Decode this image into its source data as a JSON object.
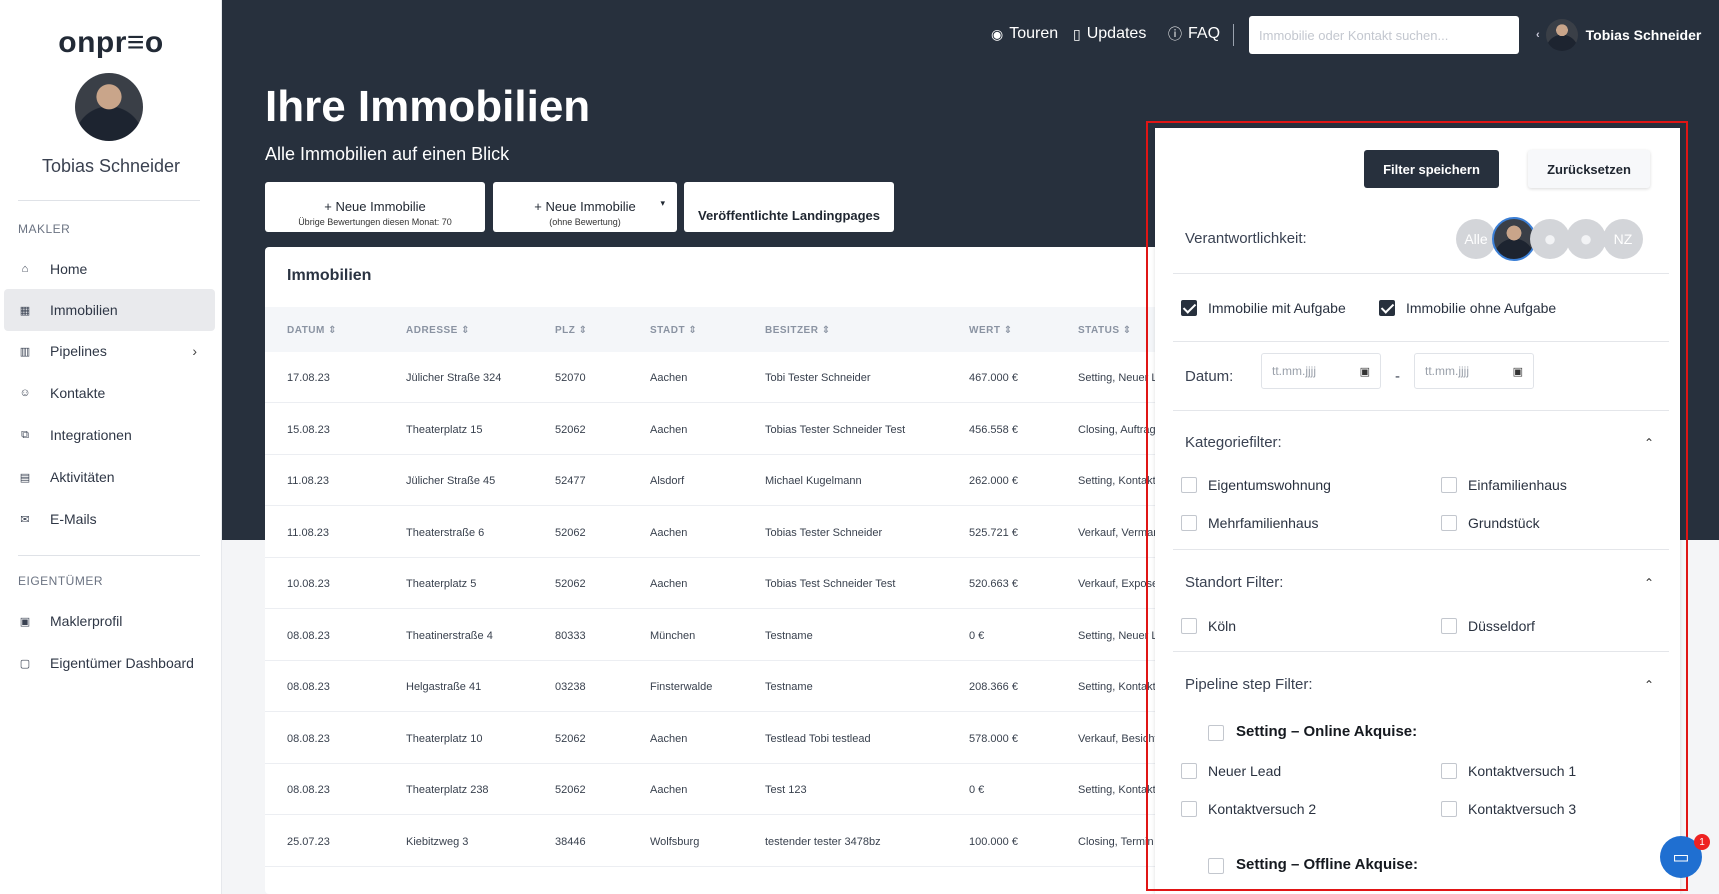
{
  "sidebar": {
    "logo": "onpr≡o",
    "user_name": "Tobias Schneider",
    "section_makler": "MAKLER",
    "section_eigentuemer": "EIGENTÜMER",
    "items": [
      {
        "label": "Home",
        "icon": "home-icon"
      },
      {
        "label": "Immobilien",
        "icon": "building-icon"
      },
      {
        "label": "Pipelines",
        "icon": "pipeline-icon"
      },
      {
        "label": "Kontakte",
        "icon": "contacts-icon"
      },
      {
        "label": "Integrationen",
        "icon": "integrations-icon"
      },
      {
        "label": "Aktivitäten",
        "icon": "calendar-icon"
      },
      {
        "label": "E-Mails",
        "icon": "mail-icon"
      }
    ],
    "owner_items": [
      {
        "label": "Maklerprofil",
        "icon": "profile-card-icon"
      },
      {
        "label": "Eigentümer Dashboard",
        "icon": "dashboard-icon"
      }
    ]
  },
  "topbar": {
    "touren": "Touren",
    "updates": "Updates",
    "faq": "FAQ",
    "search_placeholder": "Immobilie oder Kontakt suchen...",
    "user_name": "Tobias Schneider"
  },
  "header": {
    "title": "Ihre Immobilien",
    "subtitle": "Alle Immobilien auf einen Blick"
  },
  "actions": {
    "new_property": "+ Neue Immobilie",
    "new_property_sub": "Übrige Bewertungen diesen Monat: 70",
    "new_property_no_eval": "+ Neue Immobilie",
    "new_property_no_eval_sub": "(ohne Bewertung)",
    "landingpages": "Veröffentlichte Landingpages"
  },
  "table": {
    "title": "Immobilien",
    "columns": [
      "DATUM ⇕",
      "ADRESSE ⇕",
      "PLZ ⇕",
      "STADT ⇕",
      "BESITZER ⇕",
      "WERT ⇕",
      "STATUS ⇕"
    ],
    "rows": [
      [
        "17.08.23",
        "Jülicher Straße 324",
        "52070",
        "Aachen",
        "Tobi Tester Schneider",
        "467.000 €",
        "Setting, Neuer Le"
      ],
      [
        "15.08.23",
        "Theaterplatz 15",
        "52062",
        "Aachen",
        "Tobias Tester Schneider Test",
        "456.558 €",
        "Closing, Auftrag"
      ],
      [
        "11.08.23",
        "Jülicher Straße 45",
        "52477",
        "Alsdorf",
        "Michael Kugelmann",
        "262.000 €",
        "Setting, Kontakt"
      ],
      [
        "11.08.23",
        "Theaterstraße 6",
        "52062",
        "Aachen",
        "Tobias Tester Schneider",
        "525.721 €",
        "Verkauf, Vermark"
      ],
      [
        "10.08.23",
        "Theaterplatz 5",
        "52062",
        "Aachen",
        "Tobias Test Schneider Test",
        "520.663 €",
        "Verkauf, Expose"
      ],
      [
        "08.08.23",
        "Theatinerstraße 4",
        "80333",
        "München",
        "Testname",
        "0 €",
        "Setting, Neuer L"
      ],
      [
        "08.08.23",
        "Helgastraße 41",
        "03238",
        "Finsterwalde",
        "Testname",
        "208.366 €",
        "Setting, Kontakt"
      ],
      [
        "08.08.23",
        "Theaterplatz 10",
        "52062",
        "Aachen",
        "Testlead Tobi testlead",
        "578.000 €",
        "Verkauf, Besicht"
      ],
      [
        "08.08.23",
        "Theaterplatz 238",
        "52062",
        "Aachen",
        "Test 123",
        "0 €",
        "Setting, Kontakt"
      ],
      [
        "25.07.23",
        "Kiebitzweg 3",
        "38446",
        "Wolfsburg",
        "testender tester 3478bz",
        "100.000 €",
        "Closing, Termin v"
      ]
    ]
  },
  "filter": {
    "save": "Filter speichern",
    "reset": "Zurücksetzen",
    "verantwortlichkeit": "Verantwortlichkeit:",
    "chip_all": "Alle",
    "chip_nz": "NZ",
    "with_task": "Immobilie mit Aufgabe",
    "without_task": "Immobilie ohne Aufgabe",
    "datum": "Datum:",
    "date_placeholder": "tt.mm.jjjj",
    "date_dash": "-",
    "kategorie": "Kategoriefilter:",
    "kat_items": [
      "Eigentumswohnung",
      "Einfamilienhaus",
      "Mehrfamilienhaus",
      "Grundstück"
    ],
    "standort": "Standort Filter:",
    "standort_items": [
      "Köln",
      "Düsseldorf"
    ],
    "pipeline": "Pipeline step Filter:",
    "online_group": "Setting – Online Akquise:",
    "online_items": [
      "Neuer Lead",
      "Kontaktversuch 1",
      "Kontaktversuch 2",
      "Kontaktversuch 3"
    ],
    "offline_group": "Setting – Offline Akquise:"
  },
  "chat": {
    "badge": "1"
  }
}
